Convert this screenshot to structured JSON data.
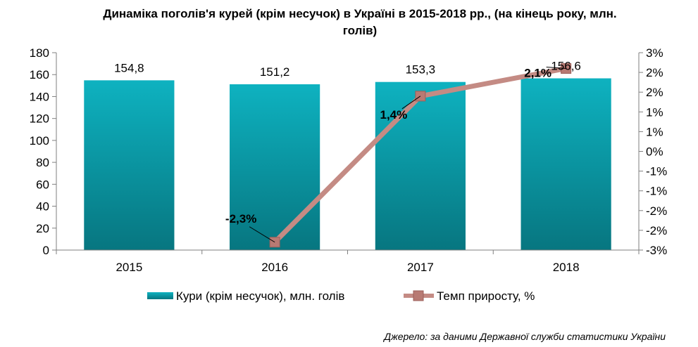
{
  "chart_data": {
    "type": "bar",
    "title_lines": [
      "Динаміка поголів'я курей (крім несучок) в Україні в 2015-2018 рр., (на кінець року, млн.",
      "голів)"
    ],
    "categories": [
      "2015",
      "2016",
      "2017",
      "2018"
    ],
    "series": [
      {
        "name": "Кури (крім несучок), млн. голів",
        "type": "bar",
        "axis": "left",
        "values": [
          154.8,
          151.2,
          153.3,
          156.6
        ],
        "labels": [
          "154,8",
          "151,2",
          "153,3",
          "156,6"
        ],
        "color": "#0b8f9c"
      },
      {
        "name": "Темп приросту, %",
        "type": "line",
        "axis": "right",
        "values": [
          null,
          -2.3,
          1.4,
          2.1
        ],
        "labels": [
          "",
          "-2,3%",
          "1,4%",
          "2,1%"
        ],
        "color": "#c48b84"
      }
    ],
    "left_axis": {
      "ylim": [
        0,
        180
      ],
      "ticks": [
        0,
        20,
        40,
        60,
        80,
        100,
        120,
        140,
        160,
        180
      ],
      "tick_labels": [
        "0",
        "20",
        "40",
        "60",
        "80",
        "100",
        "120",
        "140",
        "160",
        "180"
      ]
    },
    "right_axis": {
      "ylim": [
        -2.5,
        2.5
      ],
      "tick_labels": [
        "-3%",
        "-2%",
        "-2%",
        "-1%",
        "-1%",
        "0%",
        "1%",
        "1%",
        "2%",
        "2%",
        "3%"
      ]
    },
    "legend_position": "bottom",
    "grid": false,
    "source": "Джерело: за даними Державної служби статистики України"
  }
}
